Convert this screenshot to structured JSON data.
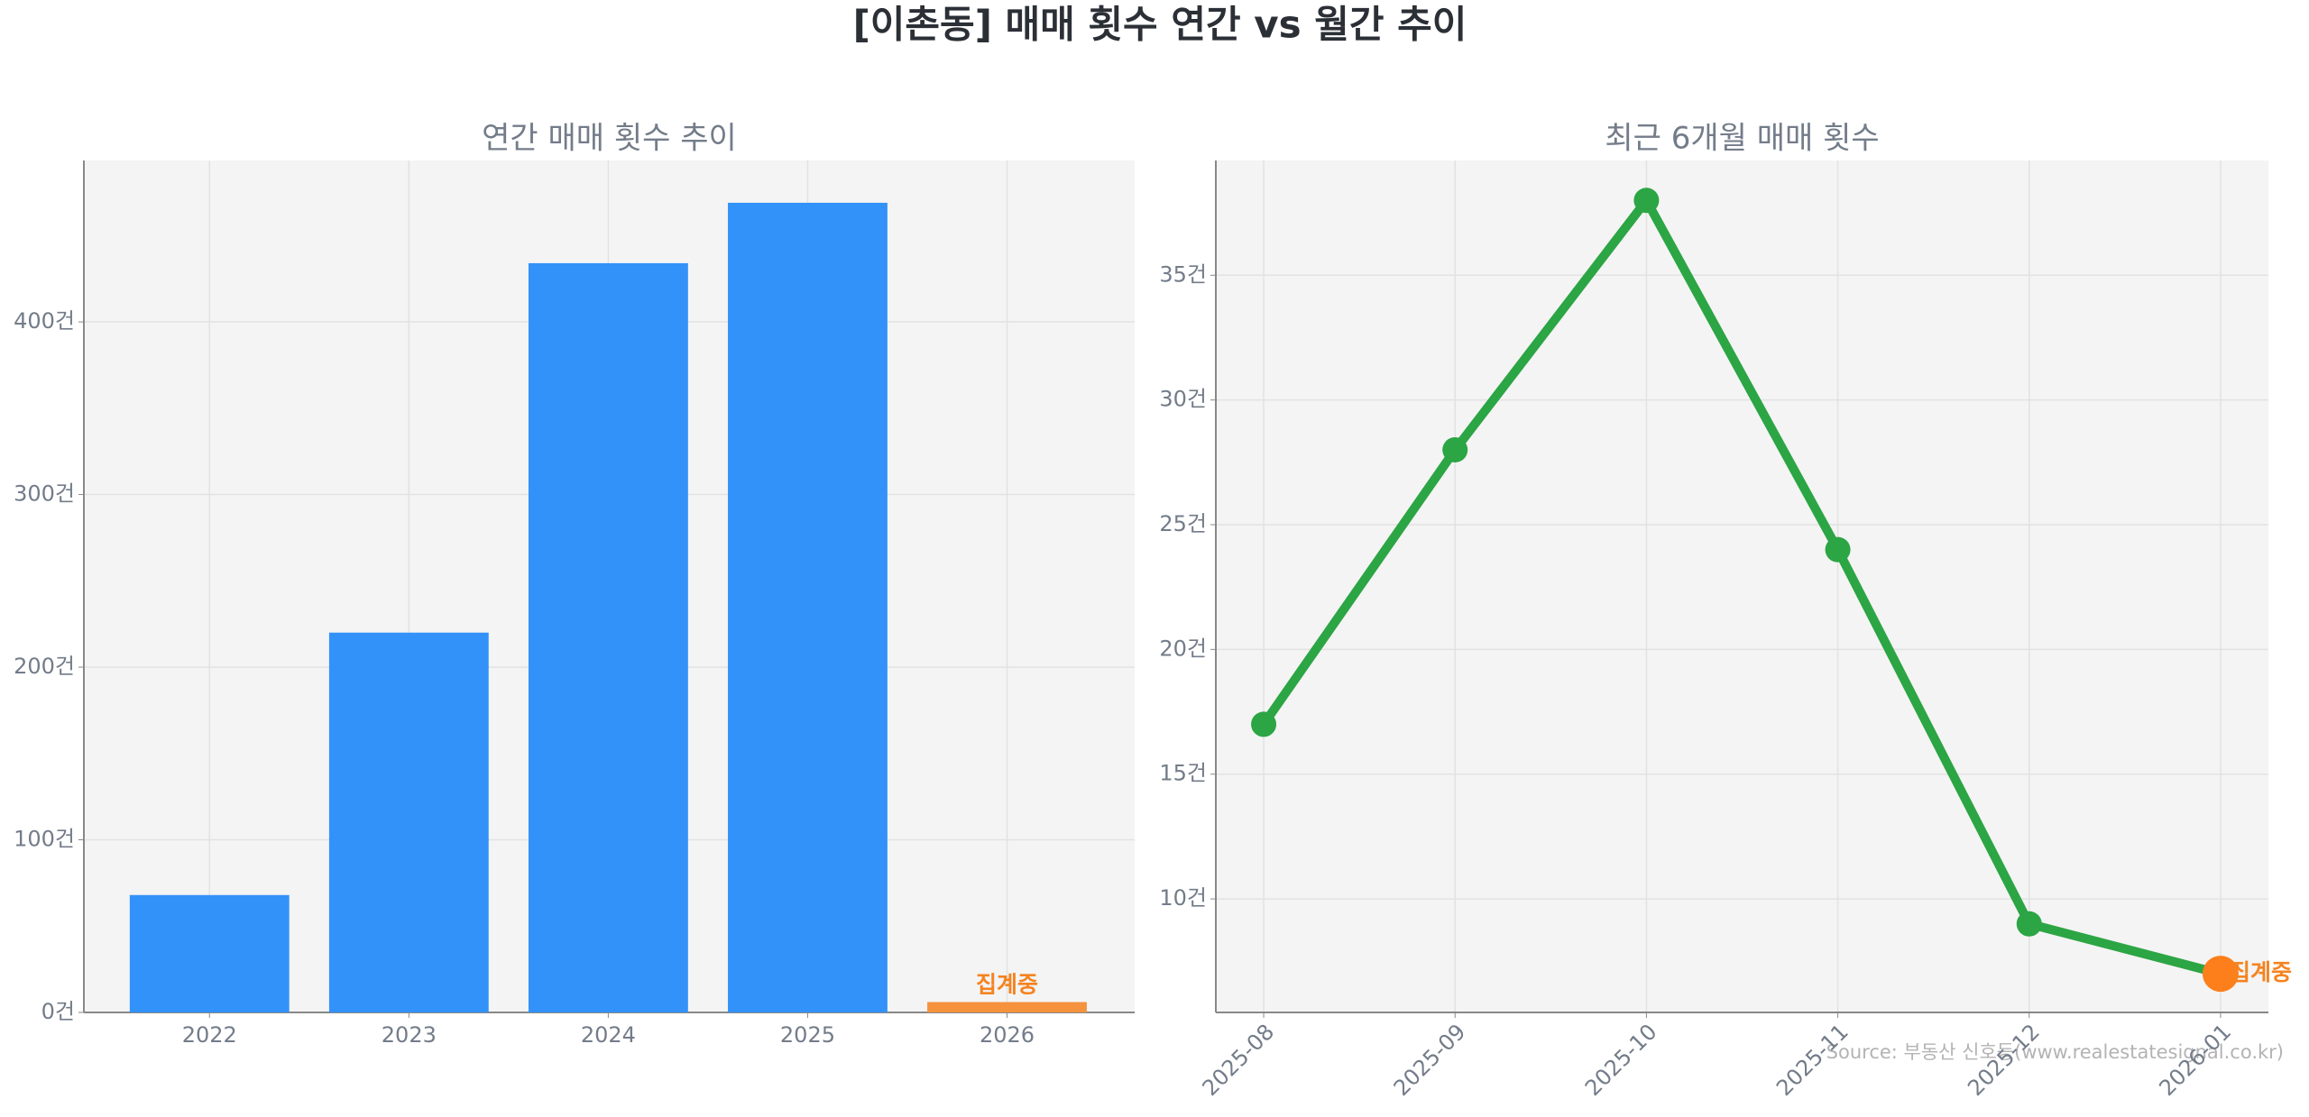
{
  "title": "[이촌동] 매매 횟수 연간 vs 월간 추이",
  "source": "Source: 부동산 신호등(www.realestatesignal.co.kr)",
  "chart_data": [
    {
      "type": "bar",
      "title": "연간 매매 횟수 추이",
      "categories": [
        "2022",
        "2023",
        "2024",
        "2025",
        "2026"
      ],
      "values": [
        68,
        220,
        434,
        469,
        6
      ],
      "colors": [
        "#3392f9",
        "#3392f9",
        "#3392f9",
        "#3392f9",
        "#f5923e"
      ],
      "ylim": [
        0,
        493.5
      ],
      "yticks": [
        {
          "value": 0,
          "label": "0건"
        },
        {
          "value": 100,
          "label": "100건"
        },
        {
          "value": 200,
          "label": "200건"
        },
        {
          "value": 300,
          "label": "300건"
        },
        {
          "value": 400,
          "label": "400건"
        }
      ],
      "grid": true,
      "annotations": [
        {
          "text": "집계중",
          "category": "2026",
          "color": "#f5831f"
        }
      ]
    },
    {
      "type": "line",
      "title": "최근 6개월 매매 횟수",
      "categories": [
        "2025-08",
        "2025-09",
        "2025-10",
        "2025-11",
        "2025-12",
        "2026-01"
      ],
      "values": [
        17,
        28,
        38,
        24,
        9,
        7
      ],
      "color": "#2ca544",
      "point_colors": [
        "#2ca544",
        "#2ca544",
        "#2ca544",
        "#2ca544",
        "#2ca544",
        "#fd7f1c"
      ],
      "ylim": [
        5.45,
        39.6
      ],
      "yticks": [
        {
          "value": 10,
          "label": "10건"
        },
        {
          "value": 15,
          "label": "15건"
        },
        {
          "value": 20,
          "label": "20건"
        },
        {
          "value": 25,
          "label": "25건"
        },
        {
          "value": 30,
          "label": "30건"
        },
        {
          "value": 35,
          "label": "35건"
        }
      ],
      "grid": true,
      "annotations": [
        {
          "text": "집계중",
          "category": "2026-01",
          "color": "#f5831f"
        }
      ]
    }
  ]
}
